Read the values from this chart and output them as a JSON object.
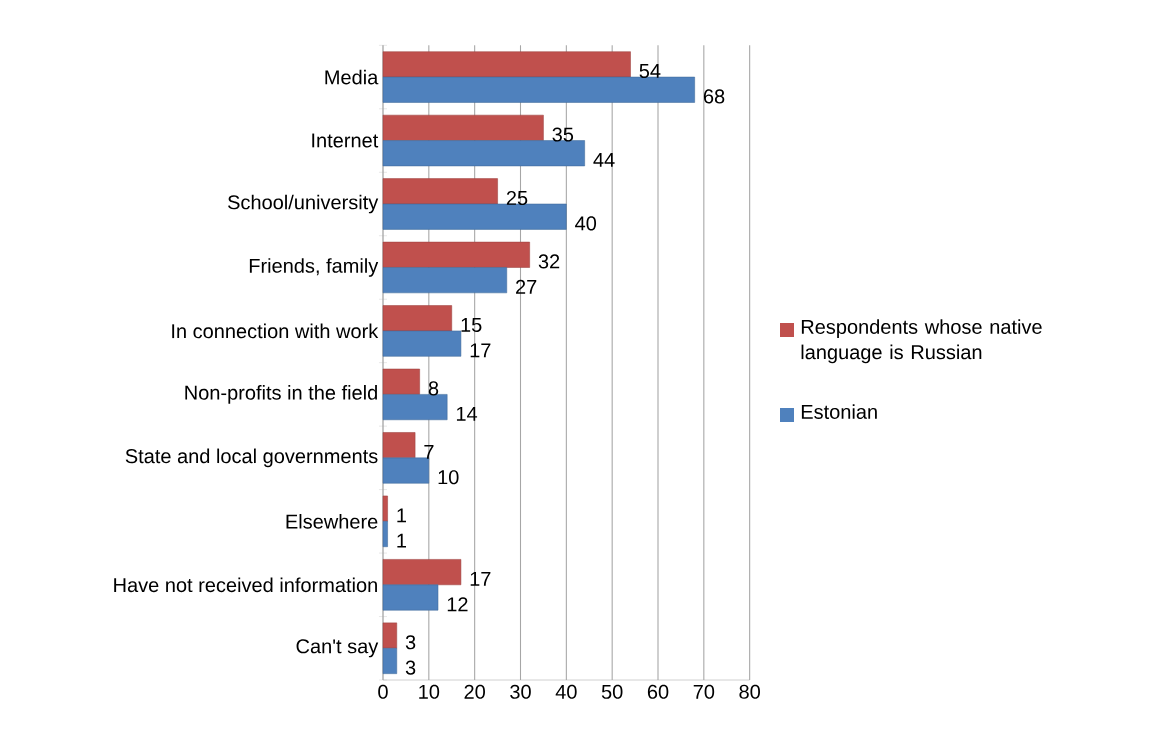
{
  "chart_data": {
    "type": "bar",
    "orientation": "horizontal",
    "categories": [
      "Media",
      "Internet",
      "School/university",
      "Friends, family",
      "In connection with work",
      "Non-profits in the field",
      "State and local governments",
      "Elsewhere",
      "Have not received information",
      "Can't say"
    ],
    "series": [
      {
        "name": "Respondents whose native language is Russian",
        "color": "#c0504d",
        "values": [
          54,
          35,
          25,
          32,
          15,
          8,
          7,
          1,
          17,
          3
        ]
      },
      {
        "name": "Estonian",
        "color": "#4f81bd",
        "values": [
          68,
          44,
          40,
          27,
          17,
          14,
          10,
          1,
          12,
          3
        ]
      }
    ],
    "xlim": [
      0,
      80
    ],
    "xticks": [
      0,
      10,
      20,
      30,
      40,
      50,
      60,
      70,
      80
    ],
    "grid": "x",
    "legend": "right",
    "data_labels": true
  }
}
